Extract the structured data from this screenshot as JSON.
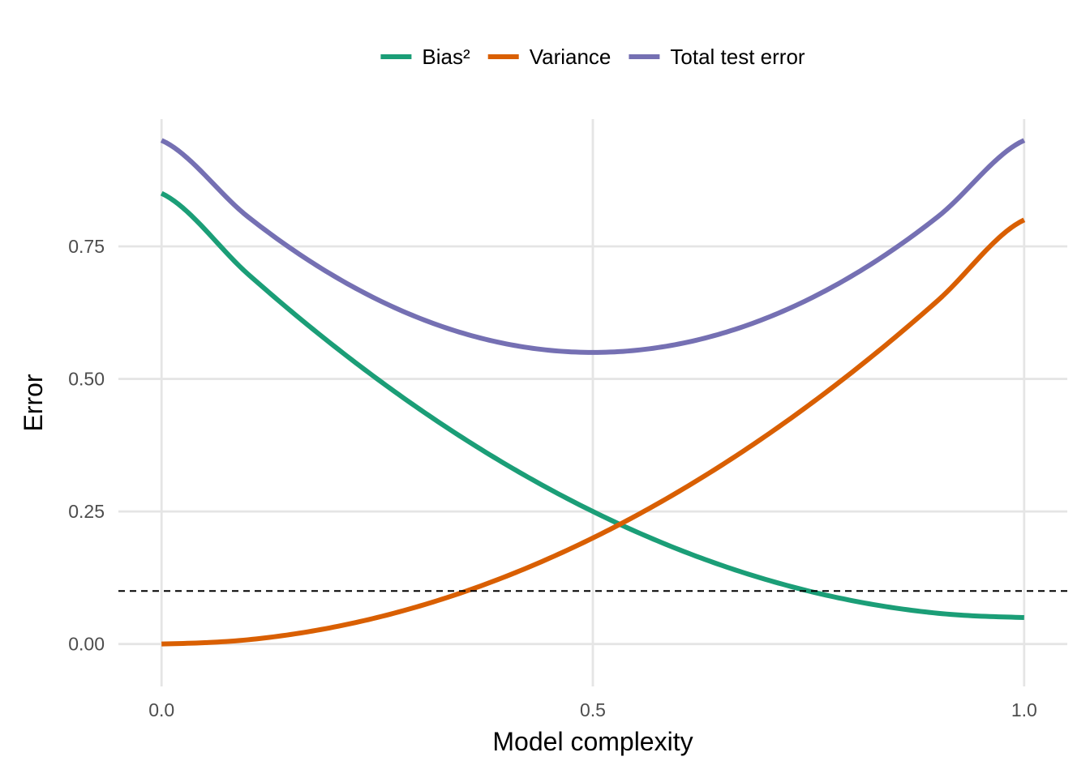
{
  "chart_data": {
    "type": "line",
    "title": "",
    "xlabel": "Model complexity",
    "ylabel": "Error",
    "xlim": [
      -0.05,
      1.05
    ],
    "ylim": [
      -0.08,
      0.99
    ],
    "x_ticks": [
      0.0,
      0.5,
      1.0
    ],
    "x_tick_labels": [
      "0.0",
      "0.5",
      "1.0"
    ],
    "y_ticks": [
      0.0,
      0.25,
      0.5,
      0.75
    ],
    "y_tick_labels": [
      "0.00",
      "0.25",
      "0.50",
      "0.75"
    ],
    "grid": true,
    "legend_position": "top",
    "x": [
      0.0,
      0.1,
      0.2,
      0.3,
      0.4,
      0.5,
      0.6,
      0.7,
      0.8,
      0.9,
      1.0
    ],
    "series": [
      {
        "name": "Bias²",
        "color": "#1b9e77",
        "values": [
          0.85,
          0.698,
          0.562,
          0.442,
          0.338,
          0.25,
          0.178,
          0.122,
          0.082,
          0.058,
          0.05
        ]
      },
      {
        "name": "Variance",
        "color": "#d95f02",
        "values": [
          0.0,
          0.008,
          0.032,
          0.072,
          0.128,
          0.2,
          0.288,
          0.392,
          0.512,
          0.648,
          0.8
        ]
      },
      {
        "name": "Total test error",
        "color": "#7570b3",
        "values": [
          0.95,
          0.806,
          0.694,
          0.614,
          0.566,
          0.55,
          0.566,
          0.614,
          0.694,
          0.806,
          0.95
        ]
      }
    ],
    "reference_line": {
      "y": 0.1,
      "style": "dashed",
      "color": "#000000"
    }
  }
}
